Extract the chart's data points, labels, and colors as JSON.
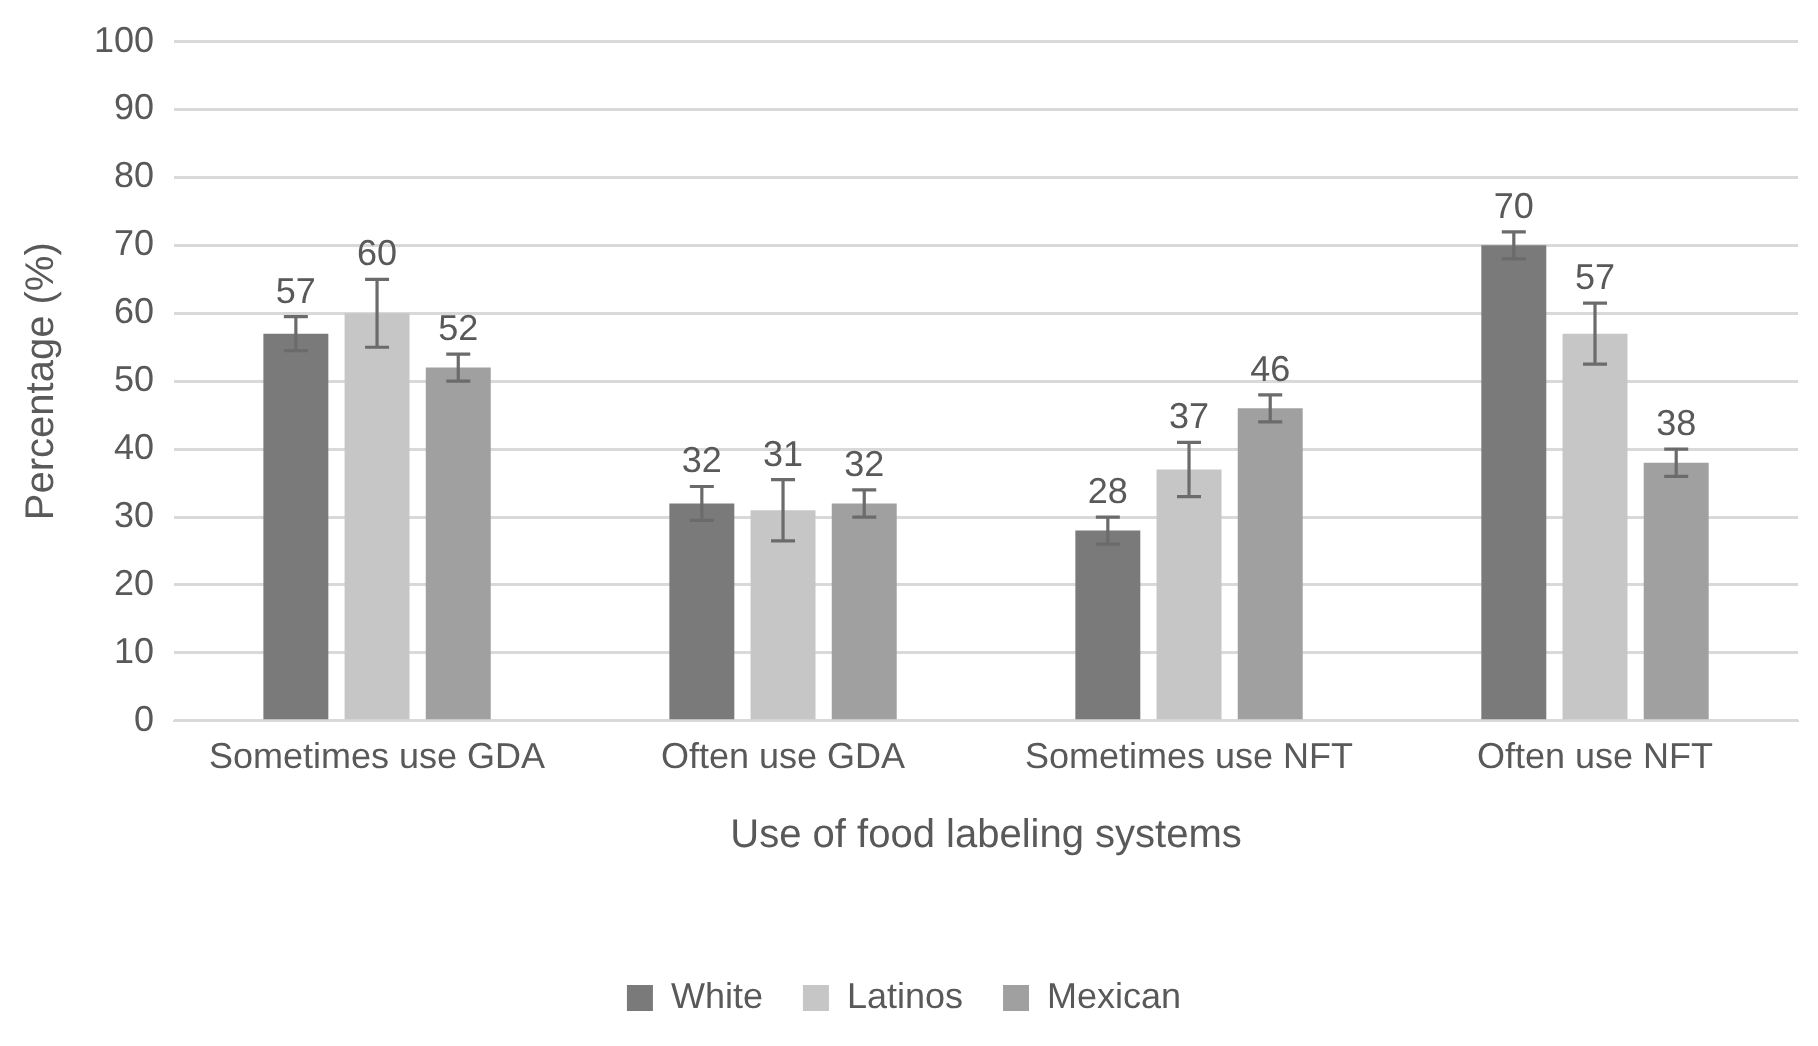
{
  "chart_data": {
    "type": "bar",
    "xlabel": "Use of food labeling systems",
    "ylabel": "Percentage (%)",
    "categories": [
      "Sometimes use GDA",
      "Often use GDA",
      "Sometimes use NFT",
      "Often use NFT"
    ],
    "series": [
      {
        "name": "White",
        "color": "#7a7a7a",
        "values": [
          57,
          32,
          28,
          70
        ],
        "errors": [
          2.5,
          2.5,
          2,
          2
        ]
      },
      {
        "name": "Latinos",
        "color": "#c5c6c5",
        "values": [
          60,
          31,
          37,
          57
        ],
        "errors": [
          5,
          4.5,
          4,
          4.5
        ]
      },
      {
        "name": "Mexican",
        "color": "#a0a0a0",
        "values": [
          52,
          32,
          46,
          38
        ],
        "errors": [
          2,
          2,
          2,
          2
        ]
      }
    ],
    "ylim": [
      0,
      100
    ],
    "yticks": [
      0,
      10,
      20,
      30,
      40,
      50,
      60,
      70,
      80,
      90,
      100
    ],
    "grid": "y",
    "legend": "bottom",
    "data_labels": true
  }
}
